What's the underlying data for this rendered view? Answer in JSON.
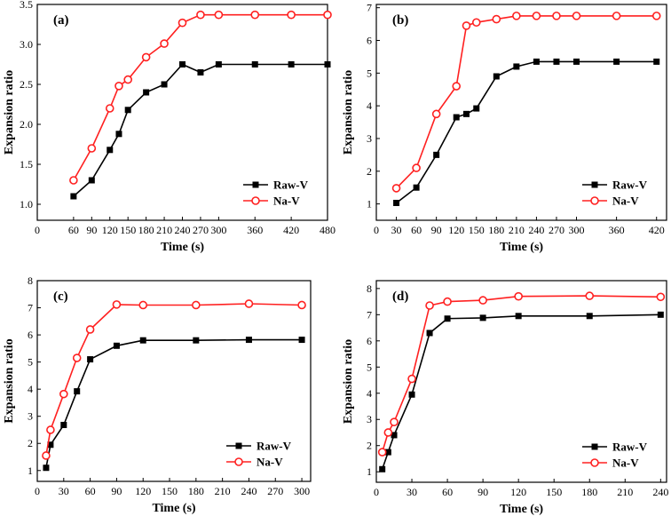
{
  "chart_data": [
    {
      "type": "line",
      "panel_label": "(a)",
      "xlabel": "Time (s)",
      "ylabel": "Expansion ratio",
      "xlim": [
        0,
        480
      ],
      "ylim": [
        0.8,
        3.5
      ],
      "xticks": [
        0,
        60,
        90,
        120,
        150,
        180,
        210,
        240,
        270,
        300,
        360,
        420,
        480
      ],
      "yticks": [
        1.0,
        1.5,
        2.0,
        2.5,
        3.0,
        3.5
      ],
      "ytick_labels": [
        "1.0",
        "1.5",
        "2.0",
        "2.5",
        "3.0",
        "3.5"
      ],
      "legend": "bottom-right",
      "series": [
        {
          "name": "Raw-V",
          "color": "#000000",
          "marker": "square",
          "x": [
            60,
            90,
            120,
            135,
            150,
            180,
            210,
            240,
            270,
            300,
            360,
            420,
            480
          ],
          "y": [
            1.1,
            1.3,
            1.68,
            1.88,
            2.18,
            2.4,
            2.5,
            2.75,
            2.65,
            2.75,
            2.75,
            2.75,
            2.75
          ]
        },
        {
          "name": "Na-V",
          "color": "#ff2020",
          "marker": "circle",
          "x": [
            60,
            90,
            120,
            135,
            150,
            180,
            210,
            240,
            270,
            300,
            360,
            420,
            480
          ],
          "y": [
            1.3,
            1.7,
            2.2,
            2.48,
            2.56,
            2.84,
            3.01,
            3.27,
            3.37,
            3.37,
            3.37,
            3.37,
            3.37
          ]
        }
      ]
    },
    {
      "type": "line",
      "panel_label": "(b)",
      "xlabel": "Time (s)",
      "ylabel": "Expansion ratio",
      "xlim": [
        0,
        435
      ],
      "ylim": [
        0.5,
        7.1
      ],
      "xticks": [
        0,
        30,
        60,
        90,
        120,
        150,
        180,
        210,
        240,
        270,
        300,
        360,
        420
      ],
      "yticks": [
        1,
        2,
        3,
        4,
        5,
        6,
        7
      ],
      "ytick_labels": [
        "1",
        "2",
        "3",
        "4",
        "5",
        "6",
        "7"
      ],
      "legend": "bottom-right",
      "series": [
        {
          "name": "Raw-V",
          "color": "#000000",
          "marker": "square",
          "x": [
            30,
            60,
            90,
            120,
            135,
            150,
            180,
            210,
            240,
            270,
            300,
            360,
            420
          ],
          "y": [
            1.03,
            1.5,
            2.5,
            3.65,
            3.75,
            3.92,
            4.9,
            5.2,
            5.35,
            5.35,
            5.35,
            5.35,
            5.35
          ]
        },
        {
          "name": "Na-V",
          "color": "#ff2020",
          "marker": "circle",
          "x": [
            30,
            60,
            90,
            120,
            135,
            150,
            180,
            210,
            240,
            270,
            300,
            360,
            420
          ],
          "y": [
            1.48,
            2.1,
            3.75,
            4.6,
            6.45,
            6.55,
            6.65,
            6.75,
            6.75,
            6.75,
            6.75,
            6.75,
            6.75
          ]
        }
      ]
    },
    {
      "type": "line",
      "panel_label": "(c)",
      "xlabel": "Time (s)",
      "ylabel": "Expansion ratio",
      "xlim": [
        0,
        310
      ],
      "ylim": [
        0.6,
        8.0
      ],
      "xticks": [
        0,
        30,
        60,
        90,
        120,
        150,
        180,
        210,
        240,
        270,
        300
      ],
      "yticks": [
        1,
        2,
        3,
        4,
        5,
        6,
        7,
        8
      ],
      "ytick_labels": [
        "1",
        "2",
        "3",
        "4",
        "5",
        "6",
        "7",
        "8"
      ],
      "legend": "bottom-right",
      "series": [
        {
          "name": "Raw-V",
          "color": "#000000",
          "marker": "square",
          "x": [
            10,
            15,
            30,
            45,
            60,
            90,
            120,
            180,
            240,
            300
          ],
          "y": [
            1.1,
            1.95,
            2.68,
            3.92,
            5.1,
            5.6,
            5.8,
            5.8,
            5.82,
            5.82
          ]
        },
        {
          "name": "Na-V",
          "color": "#ff2020",
          "marker": "circle",
          "x": [
            10,
            15,
            30,
            45,
            60,
            90,
            120,
            180,
            240,
            300
          ],
          "y": [
            1.55,
            2.5,
            3.82,
            5.15,
            6.2,
            7.12,
            7.1,
            7.1,
            7.15,
            7.1
          ]
        }
      ]
    },
    {
      "type": "line",
      "panel_label": "(d)",
      "xlabel": "Time (s)",
      "ylabel": "Expansion ratio",
      "xlim": [
        0,
        245
      ],
      "ylim": [
        0.6,
        8.3
      ],
      "xticks": [
        0,
        30,
        60,
        90,
        120,
        150,
        180,
        210,
        240
      ],
      "yticks": [
        1,
        2,
        3,
        4,
        5,
        6,
        7,
        8
      ],
      "ytick_labels": [
        "1",
        "2",
        "3",
        "4",
        "5",
        "6",
        "7",
        "8"
      ],
      "legend": "bottom-right",
      "series": [
        {
          "name": "Raw-V",
          "color": "#000000",
          "marker": "square",
          "x": [
            5,
            10,
            15,
            30,
            45,
            60,
            90,
            120,
            180,
            240
          ],
          "y": [
            1.1,
            1.75,
            2.4,
            3.95,
            6.3,
            6.85,
            6.88,
            6.95,
            6.95,
            7.0
          ]
        },
        {
          "name": "Na-V",
          "color": "#ff2020",
          "marker": "circle",
          "x": [
            5,
            10,
            15,
            30,
            45,
            60,
            90,
            120,
            180,
            240
          ],
          "y": [
            1.75,
            2.5,
            2.9,
            4.55,
            7.35,
            7.5,
            7.55,
            7.7,
            7.72,
            7.68
          ]
        }
      ]
    }
  ]
}
